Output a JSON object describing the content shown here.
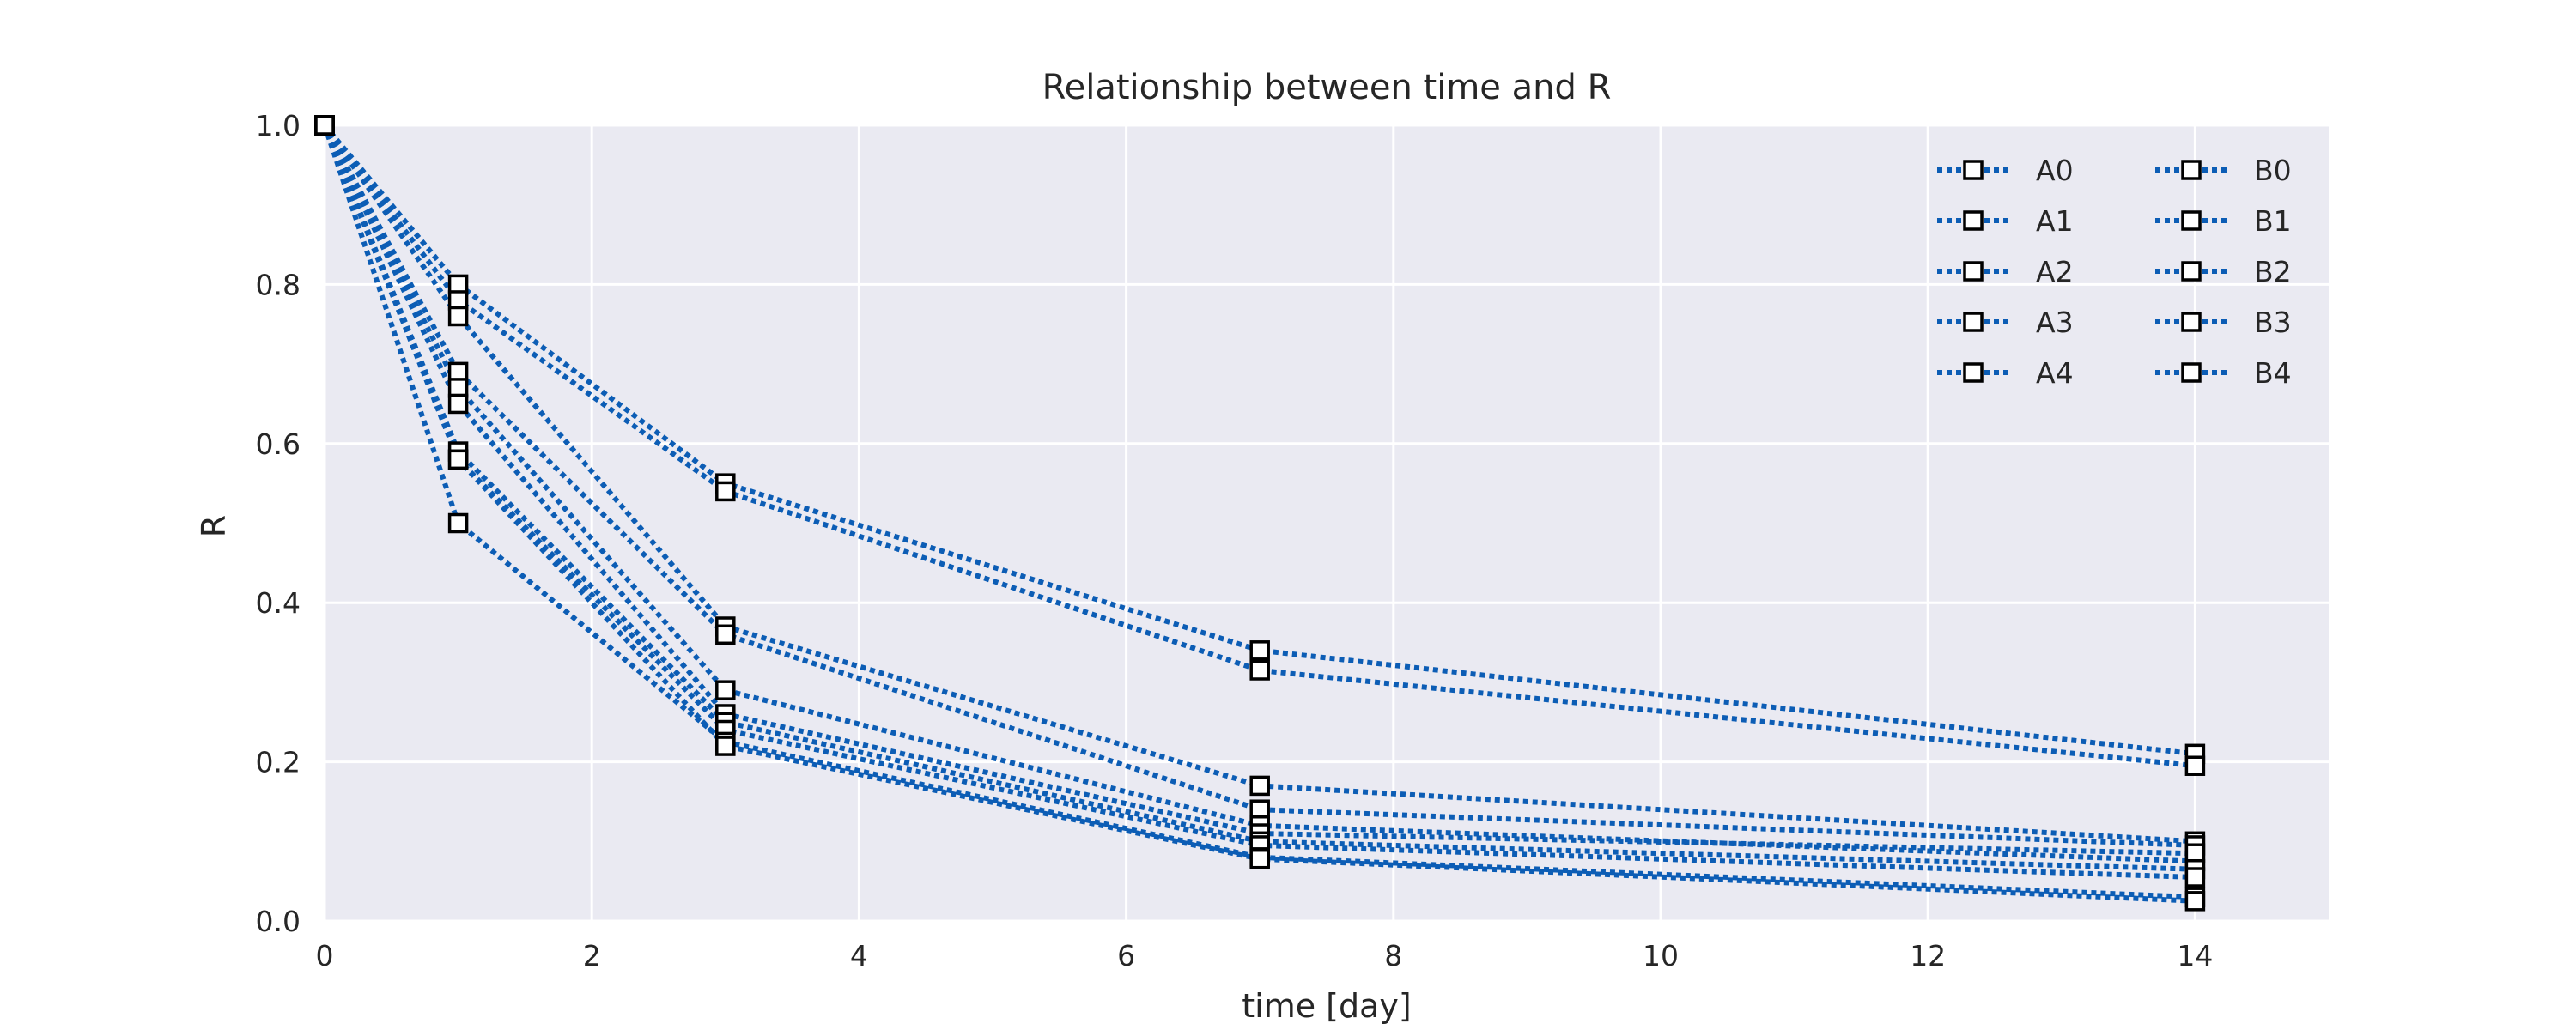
{
  "colors": {
    "background": "#ffffff",
    "plot_background": "#EAEAF2",
    "grid": "#ffffff",
    "line": "#0C5DB5",
    "marker_edge": "#000000",
    "marker_face": "#ffffff"
  },
  "chart_data": {
    "type": "line",
    "title": "Relationship between time and R",
    "xlabel": "time [day]",
    "ylabel": "R",
    "xlim": [
      0,
      15
    ],
    "ylim": [
      0,
      1.0
    ],
    "x_ticks": [
      "0",
      "2",
      "4",
      "6",
      "8",
      "10",
      "12",
      "14"
    ],
    "y_ticks": [
      "0.0",
      "0.2",
      "0.4",
      "0.6",
      "0.8",
      "1.0"
    ],
    "grid": true,
    "legend_position": "top-right",
    "legend_columns": 2,
    "line_style": "dotted",
    "marker": "square",
    "x": [
      0,
      1,
      3,
      7,
      14
    ],
    "series": [
      {
        "name": "A0",
        "values": [
          1.0,
          0.8,
          0.55,
          0.34,
          0.21
        ]
      },
      {
        "name": "A1",
        "values": [
          1.0,
          0.78,
          0.54,
          0.315,
          0.195
        ]
      },
      {
        "name": "A2",
        "values": [
          1.0,
          0.76,
          0.37,
          0.17,
          0.1
        ]
      },
      {
        "name": "A3",
        "values": [
          1.0,
          0.69,
          0.36,
          0.14,
          0.095
        ]
      },
      {
        "name": "A4",
        "values": [
          1.0,
          0.67,
          0.29,
          0.12,
          0.075
        ]
      },
      {
        "name": "B0",
        "values": [
          1.0,
          0.65,
          0.26,
          0.11,
          0.085
        ]
      },
      {
        "name": "B1",
        "values": [
          1.0,
          0.59,
          0.25,
          0.1,
          0.065
        ]
      },
      {
        "name": "B2",
        "values": [
          1.0,
          0.58,
          0.24,
          0.095,
          0.055
        ]
      },
      {
        "name": "B3",
        "values": [
          1.0,
          0.5,
          0.225,
          0.08,
          0.03
        ]
      },
      {
        "name": "B4",
        "values": [
          1.0,
          0.58,
          0.22,
          0.078,
          0.025
        ]
      }
    ]
  }
}
